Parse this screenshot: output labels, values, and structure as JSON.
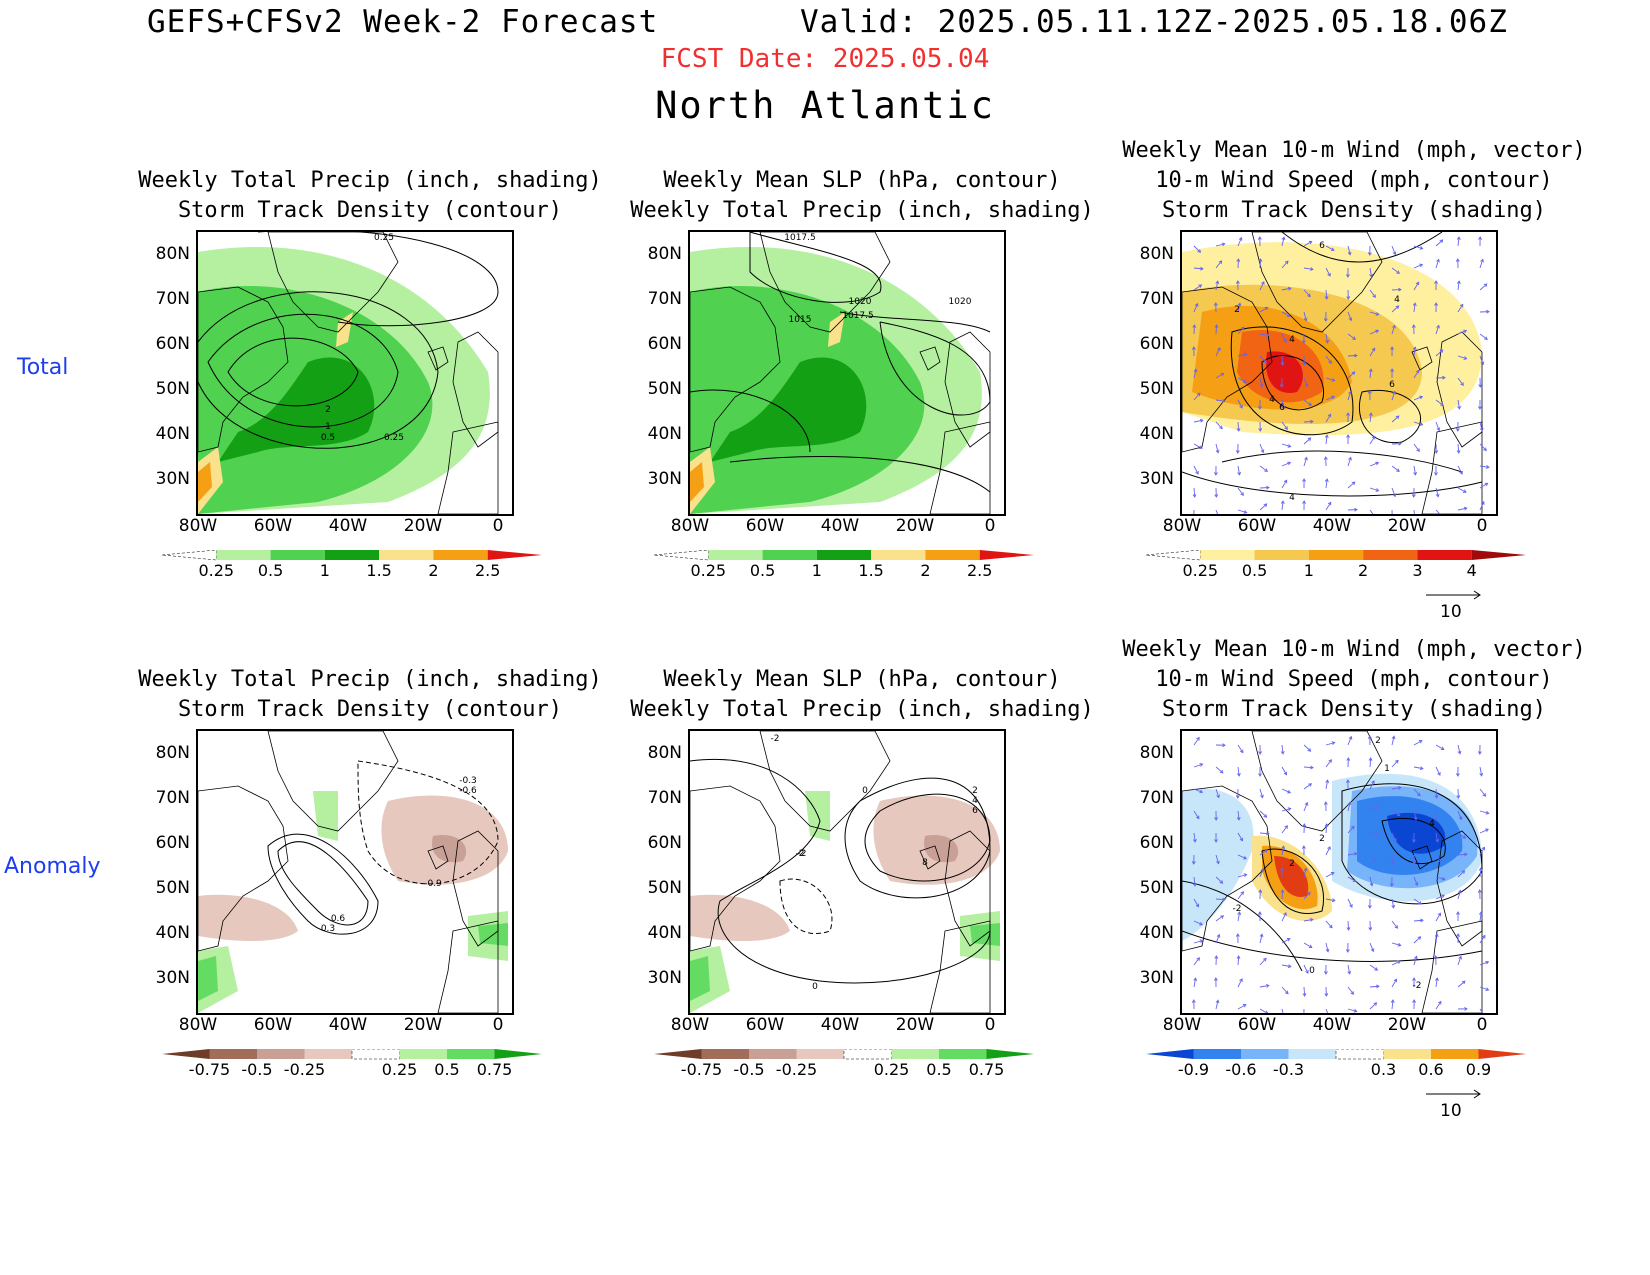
{
  "header": {
    "title": "GEFS+CFSv2 Week-2 Forecast",
    "valid": "Valid: 2025.05.11.12Z-2025.05.18.06Z",
    "fcst_date": "FCST Date: 2025.05.04",
    "region": "North Atlantic"
  },
  "rows": {
    "total": "Total",
    "anomaly": "Anomaly"
  },
  "axes": {
    "lat_ticks": [
      "80N",
      "70N",
      "60N",
      "50N",
      "40N",
      "30N"
    ],
    "lon_ticks": [
      "80W",
      "60W",
      "40W",
      "20W",
      "0"
    ]
  },
  "panels": [
    {
      "id": "total-precip-storm",
      "title": [
        "Weekly Total Precip (inch, shading)",
        "Storm Track Density (contour)"
      ],
      "shading": "green",
      "contour_labels": [
        "0.25",
        "0.5",
        "1",
        "2",
        "0.25"
      ],
      "colorbar": {
        "labels": [
          "0.25",
          "0.5",
          "1",
          "1.5",
          "2",
          "2.5"
        ],
        "colors": [
          "#ffffff",
          "#b4f0a0",
          "#50d250",
          "#14a014",
          "#fae18c",
          "#f5a014",
          "#e11414"
        ]
      }
    },
    {
      "id": "total-slp-precip",
      "title": [
        "Weekly Mean SLP (hPa, contour)",
        "Weekly Total Precip (inch, shading)"
      ],
      "shading": "green",
      "contour_labels": [
        "1017.5",
        "1020",
        "1015",
        "1017.5",
        "1020"
      ],
      "colorbar": {
        "labels": [
          "0.25",
          "0.5",
          "1",
          "1.5",
          "2",
          "2.5"
        ],
        "colors": [
          "#ffffff",
          "#b4f0a0",
          "#50d250",
          "#14a014",
          "#fae18c",
          "#f5a014",
          "#e11414"
        ]
      }
    },
    {
      "id": "total-wind-storm",
      "title": [
        "Weekly Mean 10-m Wind (mph, vector)",
        "10-m Wind Speed (mph, contour)",
        "Storm Track Density (shading)"
      ],
      "shading": "warm",
      "contour_labels": [
        "6",
        "4",
        "2",
        "4",
        "4",
        "6",
        "6",
        "4"
      ],
      "colorbar": {
        "labels": [
          "0.25",
          "0.5",
          "1",
          "2",
          "3",
          "4"
        ],
        "colors": [
          "#ffffff",
          "#fff0a0",
          "#f5c850",
          "#f5a014",
          "#f06414",
          "#e11414",
          "#a00a0a"
        ]
      },
      "vector_ref": "10"
    },
    {
      "id": "anom-precip-storm",
      "title": [
        "Weekly Total Precip (inch, shading)",
        "Storm Track Density (contour)"
      ],
      "shading": "anom",
      "contour_labels": [
        "-0.3",
        "-0.6",
        "-0.9",
        "0.6",
        "0.3"
      ],
      "colorbar": {
        "labels": [
          "-0.75",
          "-0.5",
          "-0.25",
          "0.25",
          "0.5",
          "0.75"
        ],
        "colors": [
          "#6e3c28",
          "#a06e5a",
          "#c8a096",
          "#e6c8be",
          "#ffffff",
          "#b4f0a0",
          "#64dc64",
          "#14a014"
        ]
      }
    },
    {
      "id": "anom-slp-precip",
      "title": [
        "Weekly Mean SLP (hPa, contour)",
        "Weekly Total Precip (inch, shading)"
      ],
      "shading": "anom",
      "contour_labels": [
        "-2",
        "0",
        "2",
        "4",
        "6",
        "8",
        "-2",
        "-2",
        "0"
      ],
      "colorbar": {
        "labels": [
          "-0.75",
          "-0.5",
          "-0.25",
          "0.25",
          "0.5",
          "0.75"
        ],
        "colors": [
          "#6e3c28",
          "#a06e5a",
          "#c8a096",
          "#e6c8be",
          "#ffffff",
          "#b4f0a0",
          "#64dc64",
          "#14a014"
        ]
      }
    },
    {
      "id": "anom-wind-storm",
      "title": [
        "Weekly Mean 10-m Wind (mph, vector)",
        "10-m Wind Speed (mph, contour)",
        "Storm Track Density (shading)"
      ],
      "shading": "div",
      "contour_labels": [
        "2",
        "1",
        "2",
        "4",
        "2",
        "-2",
        "0",
        "-2"
      ],
      "colorbar": {
        "labels": [
          "-0.9",
          "-0.6",
          "-0.3",
          "0.3",
          "0.6",
          "0.9"
        ],
        "colors": [
          "#0a46d2",
          "#3282f0",
          "#78b4fa",
          "#c8e6fa",
          "#ffffff",
          "#fae18c",
          "#f5a014",
          "#e13c14"
        ]
      },
      "vector_ref": "10"
    }
  ]
}
